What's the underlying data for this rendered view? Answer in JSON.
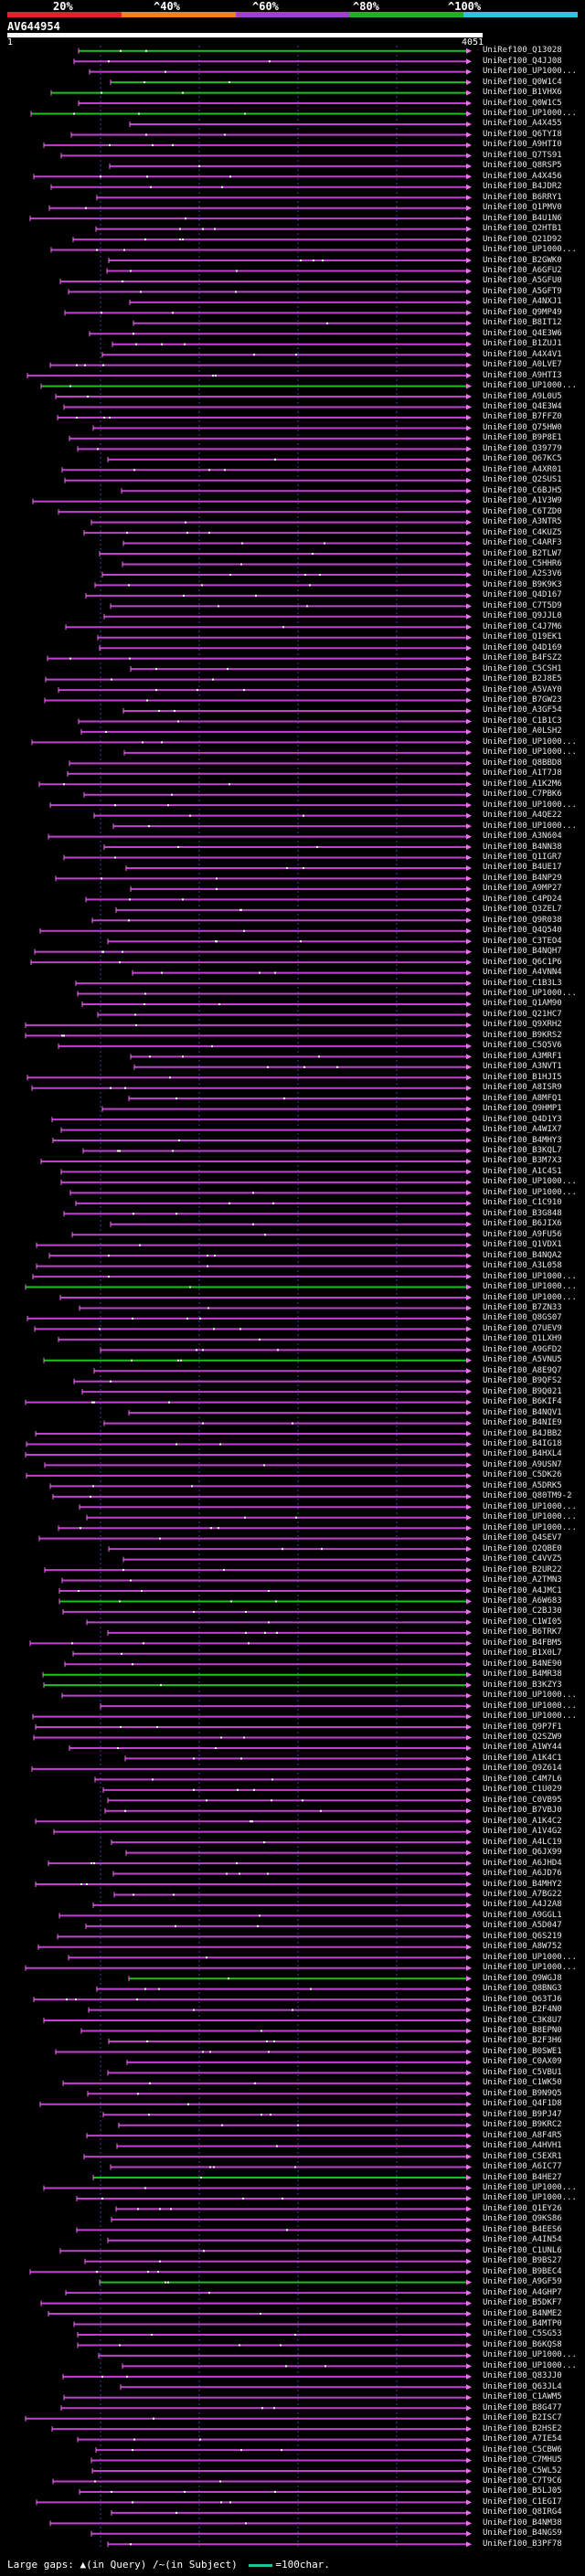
{
  "scale": {
    "ticks": [
      "20%",
      "^40%",
      "^60%",
      "^80%",
      "^100%"
    ],
    "colors": [
      "#e0202a",
      "#f08020",
      "#a040d0",
      "#20b020",
      "#30c0e0"
    ]
  },
  "query": {
    "id": "AV644954",
    "start": "1",
    "end": "4051"
  },
  "colors": {
    "hit_line": "#c040d0",
    "hit_line_light": "#f070f0",
    "full_hit": "#20c020",
    "partial_orange": "#f08020",
    "dot": "#ffffff",
    "grid": "#4040a0"
  },
  "hits": [
    "UniRef100_Q13028",
    "UniRef100_Q4JJ08",
    "UniRef100_UP1000...",
    "UniRef100_Q0W1C4",
    "UniRef100_B1VHX6",
    "UniRef100_Q0W1C5",
    "UniRef100_UP1000...",
    "UniRef100_A4X455",
    "UniRef100_Q6TYI8",
    "UniRef100_A9HTI0",
    "UniRef100_Q7TS91",
    "UniRef100_Q8RSP5",
    "UniRef100_A4X456",
    "UniRef100_B4JDR2",
    "UniRef100_B6RRY1",
    "UniRef100_Q1PMV0",
    "UniRef100_B4U1N6",
    "UniRef100_Q2HTB1",
    "UniRef100_Q21D92",
    "UniRef100_UP1000...",
    "UniRef100_B2GWK0",
    "UniRef100_A6GFU2",
    "UniRef100_A5GFU0",
    "UniRef100_A5GFT9",
    "UniRef100_A4NXJ1",
    "UniRef100_Q9MP49",
    "UniRef100_B8IT12",
    "UniRef100_Q4E3W6",
    "UniRef100_B1ZUJ1",
    "UniRef100_A4X4V1",
    "UniRef100_A0LVE7",
    "UniRef100_A9HTI3",
    "UniRef100_UP1000...",
    "UniRef100_A9L0U5",
    "UniRef100_Q4E3W4",
    "UniRef100_B7FFZ0",
    "UniRef100_Q75HW0",
    "UniRef100_B9P8E1",
    "UniRef100_Q39779",
    "UniRef100_Q67KC5",
    "UniRef100_A4XR01",
    "UniRef100_Q2SUS1",
    "UniRef100_C6BJH5",
    "UniRef100_A1V3W9",
    "UniRef100_C6TZD0",
    "UniRef100_A3NTR5",
    "UniRef100_C4KUZ5",
    "UniRef100_C4ARF3",
    "UniRef100_B2TLW7",
    "UniRef100_C5HHR6",
    "UniRef100_A2S3V6",
    "UniRef100_B9K9K3",
    "UniRef100_Q4D167",
    "UniRef100_C7T5D9",
    "UniRef100_Q9JJL0",
    "UniRef100_C4J7M6",
    "UniRef100_Q19EK1",
    "UniRef100_Q4D169",
    "UniRef100_B4FSZ2",
    "UniRef100_C5CSH1",
    "UniRef100_B2J8E5",
    "UniRef100_A5VAY0",
    "UniRef100_B7GW23",
    "UniRef100_A3GF54",
    "UniRef100_C1B1C3",
    "UniRef100_A0LSH2",
    "UniRef100_UP1000...",
    "UniRef100_UP1000...",
    "UniRef100_Q8BBD8",
    "UniRef100_A1T7J8",
    "UniRef100_A1K2M6",
    "UniRef100_C7PBK6",
    "UniRef100_UP1000...",
    "UniRef100_A4QE22",
    "UniRef100_UP1000...",
    "UniRef100_A3N604",
    "UniRef100_B4NN38",
    "UniRef100_Q1IGR7",
    "UniRef100_B4UE17",
    "UniRef100_B4NP29",
    "UniRef100_A9MP27",
    "UniRef100_C4PD24",
    "UniRef100_Q3ZEL7",
    "UniRef100_Q9R038",
    "UniRef100_Q4Q540",
    "UniRef100_C3TEO4",
    "UniRef100_B4NQH7",
    "UniRef100_Q6C1P6",
    "UniRef100_A4VNN4",
    "UniRef100_C1B3L3",
    "UniRef100_UP1000...",
    "UniRef100_Q1AM90",
    "UniRef100_Q21HC7",
    "UniRef100_Q9XRH2",
    "UniRef100_B9KRS2",
    "UniRef100_C5Q5V6",
    "UniRef100_A3MRF1",
    "UniRef100_A3NVT1",
    "UniRef100_B1HJI5",
    "UniRef100_A8ISR9",
    "UniRef100_A8MFQ1",
    "UniRef100_Q9HMP1",
    "UniRef100_Q4D1Y3",
    "UniRef100_A4WIX7",
    "UniRef100_B4MHY3",
    "UniRef100_B3KQL7",
    "UniRef100_B3M7X3",
    "UniRef100_A1C4S1",
    "UniRef100_UP1000...",
    "UniRef100_UP1000...",
    "UniRef100_C1C910",
    "UniRef100_B3G848",
    "UniRef100_B6JIX6",
    "UniRef100_A9FU56",
    "UniRef100_Q1VDX1",
    "UniRef100_B4NQA2",
    "UniRef100_A3L058",
    "UniRef100_UP1000...",
    "UniRef100_UP1000...",
    "UniRef100_UP1000...",
    "UniRef100_B7ZN33",
    "UniRef100_Q8GS07",
    "UniRef100_Q7UEV9",
    "UniRef100_Q1LXH9",
    "UniRef100_A9GFD2",
    "UniRef100_A5VNU5",
    "UniRef100_A8E9Q7",
    "UniRef100_B9QFS2",
    "UniRef100_B9Q021",
    "UniRef100_B6KIF4",
    "UniRef100_B4NQV1",
    "UniRef100_B4NIE9",
    "UniRef100_B4JBB2",
    "UniRef100_B4IG18",
    "UniRef100_B4HXL4",
    "UniRef100_A9USN7",
    "UniRef100_C5DK26",
    "UniRef100_A5DRK5",
    "UniRef100_Q80TM9-2",
    "UniRef100_UP1000...",
    "UniRef100_UP1000...",
    "UniRef100_UP1000...",
    "UniRef100_Q4SEV7",
    "UniRef100_Q2QBE0",
    "UniRef100_C4VVZ5",
    "UniRef100_B2UR22",
    "UniRef100_A2TMN3",
    "UniRef100_A4JMC1",
    "UniRef100_A6W683",
    "UniRef100_C2BJ30",
    "UniRef100_C1WI05",
    "UniRef100_B6TRK7",
    "UniRef100_B4FBM5",
    "UniRef100_B1X0L7",
    "UniRef100_B4NE90",
    "UniRef100_B4MR38",
    "UniRef100_B3KZY3",
    "UniRef100_UP1000...",
    "UniRef100_UP1000...",
    "UniRef100_UP1000...",
    "UniRef100_Q9P7F1",
    "UniRef100_Q2SZW9",
    "UniRef100_A1WY44",
    "UniRef100_A1K4C1",
    "UniRef100_Q9Z614",
    "UniRef100_C4M7L6",
    "UniRef100_C1U029",
    "UniRef100_C0VB95",
    "UniRef100_B7VBJ0",
    "UniRef100_A1K4C2",
    "UniRef100_A1V4G2",
    "UniRef100_A4LC19",
    "UniRef100_Q6JX99",
    "UniRef100_A6JHD4",
    "UniRef100_A6JD76",
    "UniRef100_B4MHY2",
    "UniRef100_A7BG22",
    "UniRef100_A4J2A8",
    "UniRef100_A9GGL1",
    "UniRef100_A5D047",
    "UniRef100_Q6S219",
    "UniRef100_A8W752",
    "UniRef100_UP1000...",
    "UniRef100_UP1000...",
    "UniRef100_Q9WGJ8",
    "UniRef100_Q8BNG3",
    "UniRef100_Q63TJ6",
    "UniRef100_B2F4N0",
    "UniRef100_C3K8U7",
    "UniRef100_B8EPN0",
    "UniRef100_B2F3H6",
    "UniRef100_B0SWE1",
    "UniRef100_C0AX09",
    "UniRef100_C5VBU1",
    "UniRef100_C1WK50",
    "UniRef100_B9N9Q5",
    "UniRef100_Q4F1D8",
    "UniRef100_B9PJ47",
    "UniRef100_B9KRC2",
    "UniRef100_A8F4R5",
    "UniRef100_A4HVH1",
    "UniRef100_C5EXR1",
    "UniRef100_A6IC77",
    "UniRef100_B4HE27",
    "UniRef100_UP1000...",
    "UniRef100_UP1000...",
    "UniRef100_Q1EY26",
    "UniRef100_Q9KS86",
    "UniRef100_B4EES6",
    "UniRef100_A4IN54",
    "UniRef100_C1UNL6",
    "UniRef100_B9BS27",
    "UniRef100_B9BEC4",
    "UniRef100_A9GF59",
    "UniRef100_A4GHP7",
    "UniRef100_B5DKF7",
    "UniRef100_B4NME2",
    "UniRef100_B4MTP0",
    "UniRef100_C5SG53",
    "UniRef100_B6KQS8",
    "UniRef100_UP1000...",
    "UniRef100_UP1000...",
    "UniRef100_Q83JJ0",
    "UniRef100_Q63JL4",
    "UniRef100_C1AWM5",
    "UniRef100_B8G477",
    "UniRef100_B2ISC7",
    "UniRef100_B2HSE2",
    "UniRef100_A7IE54",
    "UniRef100_C5CBW6",
    "UniRef100_C7MHU5",
    "UniRef100_C5WL52",
    "UniRef100_C7T9C6",
    "UniRef100_B5LJ05",
    "UniRef100_C1EGI7",
    "UniRef100_Q8IRG4",
    "UniRef100_B4NM38",
    "UniRef100_B4NGS9",
    "UniRef100_B3PF78"
  ],
  "footer": {
    "large_gaps_label": "Large gaps:",
    "query_gap_label": "(in Query)",
    "subject_gap_label": "(in Subject)",
    "scale_label": "=100char."
  }
}
